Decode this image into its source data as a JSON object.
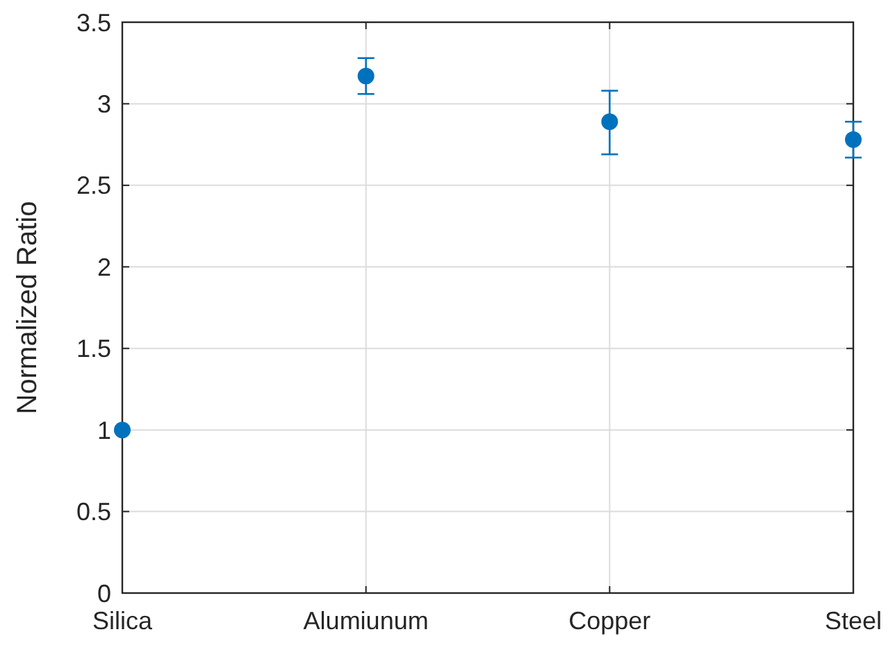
{
  "chart_data": {
    "type": "scatter",
    "ylabel": "Normalized Ratio",
    "categories": [
      "Silica",
      "Alumiunum",
      "Copper",
      "Steel"
    ],
    "series": [
      {
        "color": "#0072bd",
        "values": [
          1,
          3.17,
          2.89,
          2.78
        ],
        "errors": [
          null,
          [
            3.06,
            3.28
          ],
          [
            2.69,
            3.08
          ],
          [
            2.67,
            2.89
          ]
        ]
      }
    ],
    "ylim": [
      0,
      3.5
    ],
    "yticks": [
      0,
      0.5,
      1,
      1.5,
      2,
      2.5,
      3,
      3.5
    ],
    "grid": true,
    "marker": "circle"
  }
}
